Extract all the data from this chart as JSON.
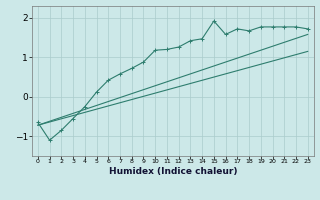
{
  "xlabel": "Humidex (Indice chaleur)",
  "bg_color": "#cce8e8",
  "line_color": "#2e7d6e",
  "grid_color": "#aacccc",
  "xlim": [
    -0.5,
    23.5
  ],
  "ylim": [
    -1.5,
    2.3
  ],
  "yticks": [
    -1,
    0,
    1,
    2
  ],
  "xticks": [
    0,
    1,
    2,
    3,
    4,
    5,
    6,
    7,
    8,
    9,
    10,
    11,
    12,
    13,
    14,
    15,
    16,
    17,
    18,
    19,
    20,
    21,
    22,
    23
  ],
  "line1_x": [
    0,
    1,
    2,
    3,
    4,
    5,
    6,
    7,
    8,
    9,
    10,
    11,
    12,
    13,
    14,
    15,
    16,
    17,
    18,
    19,
    20,
    21,
    22,
    23
  ],
  "line1_y": [
    -0.65,
    -1.1,
    -0.85,
    -0.55,
    -0.25,
    0.12,
    0.42,
    0.58,
    0.72,
    0.88,
    1.18,
    1.2,
    1.26,
    1.42,
    1.47,
    1.92,
    1.58,
    1.72,
    1.67,
    1.77,
    1.77,
    1.77,
    1.77,
    1.72
  ],
  "line2_x": [
    0,
    23
  ],
  "line2_y": [
    -0.72,
    1.58
  ],
  "line3_x": [
    0,
    23
  ],
  "line3_y": [
    -0.72,
    1.15
  ]
}
